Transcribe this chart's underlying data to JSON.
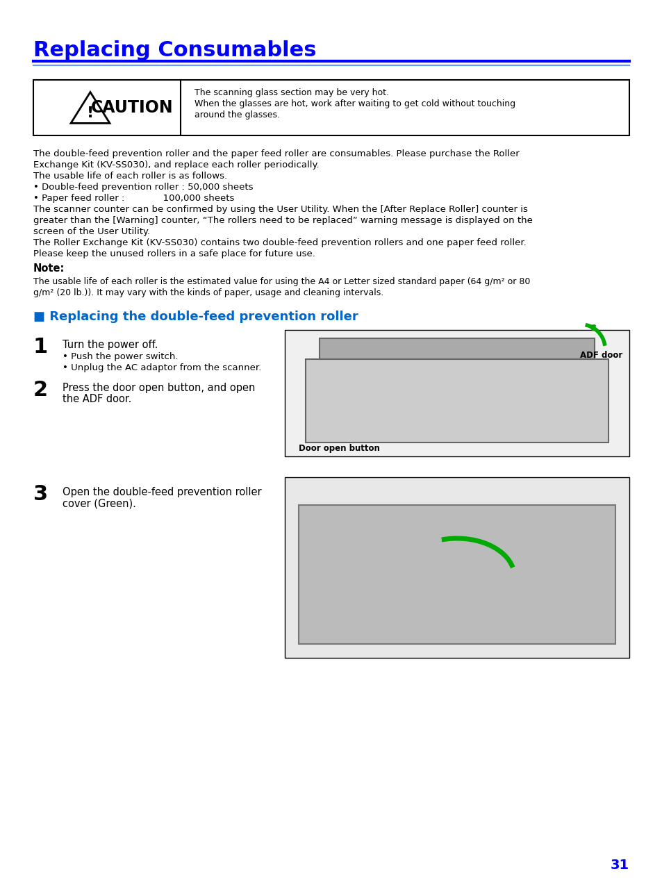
{
  "title": "Replacing Consumables",
  "title_color": "#0000FF",
  "title_fontsize": 22,
  "line_color": "#0000FF",
  "caution_box": {
    "label": "⚠ CAUTION",
    "text_line1": "The scanning glass section may be very hot.",
    "text_line2": "When the glasses are hot, work after waiting to get cold without touching",
    "text_line3": "around the glasses."
  },
  "body_text": [
    "The double-feed prevention roller and the paper feed roller are consumables. Please purchase the Roller",
    "Exchange Kit (KV-SS030), and replace each roller periodically.",
    "The usable life of each roller is as follows.",
    "• Double-feed prevention roller : 50,000 sheets",
    "• Paper feed roller :             100,000 sheets",
    "The scanner counter can be confirmed by using the User Utility. When the [After Replace Roller] counter is",
    "greater than the [Warning] counter, “The rollers need to be replaced” warning message is displayed on the",
    "screen of the User Utility.",
    "The Roller Exchange Kit (KV-SS030) contains two double-feed prevention rollers and one paper feed roller.",
    "Please keep the unused rollers in a safe place for future use."
  ],
  "note_label": "Note:",
  "note_text_line1": "The usable life of each roller is the estimated value for using the A4 or Letter sized standard paper (64 g/m² or 80",
  "note_text_line2": "g/m² (20 lb.)). It may vary with the kinds of paper, usage and cleaning intervals.",
  "section_title": "■ Replacing the double-feed prevention roller",
  "section_color": "#0066CC",
  "step1_num": "1",
  "step1_text": "Turn the power off.",
  "step1_sub1": "• Push the power switch.",
  "step1_sub2": "• Unplug the AC adaptor from the scanner.",
  "step2_num": "2",
  "step2_text": "Press the door open button, and open\nthe ADF door.",
  "step3_num": "3",
  "step3_text": "Open the double-feed prevention roller\ncover (Green).",
  "img1_label1": "ADF door",
  "img1_label2": "Door open button",
  "page_num": "31",
  "page_num_color": "#0000FF",
  "background": "#FFFFFF",
  "text_color": "#000000",
  "fontsize_body": 9.5,
  "fontsize_step": 9.5
}
